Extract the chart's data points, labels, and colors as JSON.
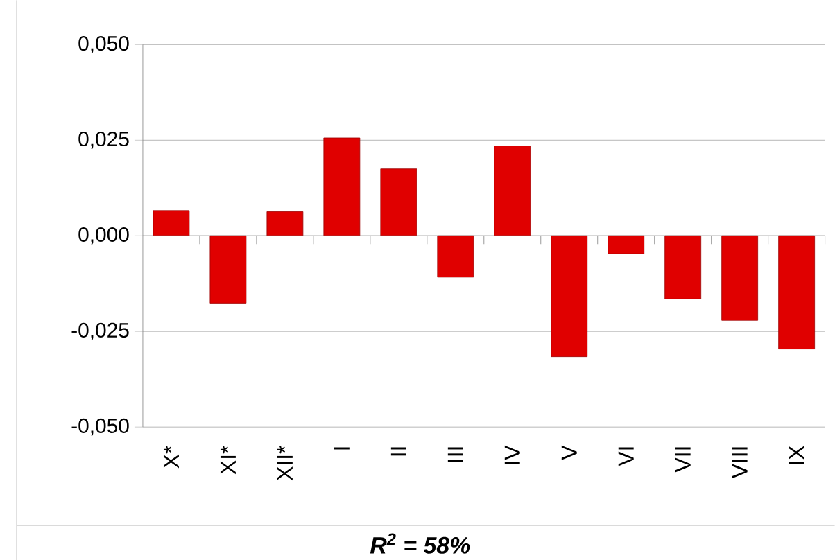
{
  "chart_data": {
    "type": "bar",
    "categories": [
      "X*",
      "XI*",
      "XII*",
      "I",
      "II",
      "III",
      "IV",
      "V",
      "VI",
      "VII",
      "VIII",
      "IX"
    ],
    "values": [
      0.0066,
      -0.0176,
      0.0063,
      0.0256,
      0.0175,
      -0.0108,
      0.0235,
      -0.0316,
      -0.0047,
      -0.0165,
      -0.0221,
      -0.0296
    ],
    "color": "#e00000",
    "ylim": [
      -0.05,
      0.05
    ],
    "yticks": [
      {
        "value": -0.05,
        "label": "-0,050"
      },
      {
        "value": -0.025,
        "label": "-0,025"
      },
      {
        "value": 0,
        "label": "0,000"
      },
      {
        "value": 0.025,
        "label": "0,025"
      },
      {
        "value": 0.05,
        "label": "0,050"
      }
    ],
    "grid": "y",
    "annotations": [
      "R$^{2}$ = 58%"
    ]
  }
}
